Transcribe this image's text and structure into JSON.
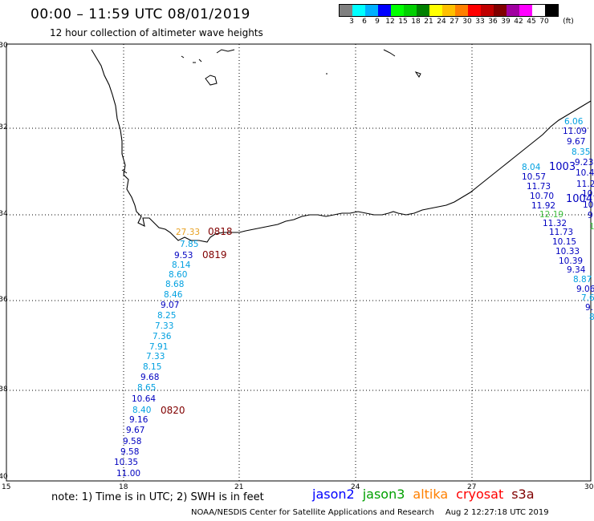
{
  "header": {
    "title": "00:00 – 11:59 UTC 08/01/2019",
    "subtitle": "12 hour collection of altimeter wave heights"
  },
  "colorbar": {
    "colors": [
      "#808080",
      "#00ffff",
      "#00b0ff",
      "#0000ff",
      "#00ff00",
      "#00d000",
      "#008000",
      "#ffff00",
      "#ffc000",
      "#ff8000",
      "#ff0000",
      "#c00000",
      "#800000",
      "#a000a0",
      "#ff00ff",
      "#ffffff",
      "#000000"
    ],
    "ticks": [
      "3",
      "6",
      "9",
      "12",
      "15",
      "18",
      "21",
      "24",
      "27",
      "30",
      "33",
      "36",
      "39",
      "42",
      "45",
      "70"
    ],
    "unit": "(ft)"
  },
  "axes": {
    "lat_labels": [
      "-30",
      "-32",
      "-34",
      "-36",
      "-38",
      "-40"
    ],
    "lon_labels": [
      "15",
      "18",
      "21",
      "24",
      "27",
      "30"
    ]
  },
  "west_track": [
    {
      "v": "27.33",
      "c": "#e8a020"
    },
    {
      "v": "7.85",
      "c": "#00a0e0"
    },
    {
      "v": "9.53",
      "c": "#0000c0"
    },
    {
      "v": "8.14",
      "c": "#00a0e0"
    },
    {
      "v": "8.60",
      "c": "#00a0e0"
    },
    {
      "v": "8.68",
      "c": "#00a0e0"
    },
    {
      "v": "8.46",
      "c": "#00a0e0"
    },
    {
      "v": "9.07",
      "c": "#0000c0"
    },
    {
      "v": "8.25",
      "c": "#00a0e0"
    },
    {
      "v": "7.33",
      "c": "#00a0e0"
    },
    {
      "v": "7.36",
      "c": "#00a0e0"
    },
    {
      "v": "7.91",
      "c": "#00a0e0"
    },
    {
      "v": "7.33",
      "c": "#00a0e0"
    },
    {
      "v": "8.15",
      "c": "#00a0e0"
    },
    {
      "v": "9.68",
      "c": "#0000c0"
    },
    {
      "v": "8.65",
      "c": "#00a0e0"
    },
    {
      "v": "10.64",
      "c": "#0000c0"
    },
    {
      "v": "8.40",
      "c": "#00a0e0"
    },
    {
      "v": "9.16",
      "c": "#0000c0"
    },
    {
      "v": "9.67",
      "c": "#0000c0"
    },
    {
      "v": "9.58",
      "c": "#0000c0"
    },
    {
      "v": "9.58",
      "c": "#0000c0"
    },
    {
      "v": "10.35",
      "c": "#0000c0"
    },
    {
      "v": "11.00",
      "c": "#0000c0"
    }
  ],
  "time_labels": [
    {
      "t": "0818",
      "c": "#800000"
    },
    {
      "t": "0819",
      "c": "#800000"
    },
    {
      "t": "0820",
      "c": "#800000"
    },
    {
      "t": "1003",
      "c": "#0000c0"
    },
    {
      "t": "1004",
      "c": "#0000c0"
    }
  ],
  "east_track_a": [
    {
      "v": "8.04",
      "c": "#00a0e0"
    },
    {
      "v": "10.57",
      "c": "#0000c0"
    },
    {
      "v": "11.73",
      "c": "#0000c0"
    },
    {
      "v": "10.70",
      "c": "#0000c0"
    },
    {
      "v": "11.92",
      "c": "#0000c0"
    },
    {
      "v": "12.19",
      "c": "#40c040"
    },
    {
      "v": "11.32",
      "c": "#0000c0"
    },
    {
      "v": "11.73",
      "c": "#0000c0"
    },
    {
      "v": "10.15",
      "c": "#0000c0"
    },
    {
      "v": "10.33",
      "c": "#0000c0"
    },
    {
      "v": "10.39",
      "c": "#0000c0"
    },
    {
      "v": "9.34",
      "c": "#0000c0"
    },
    {
      "v": "8.87",
      "c": "#00a0e0"
    },
    {
      "v": "9.06",
      "c": "#0000c0"
    },
    {
      "v": "7.6",
      "c": "#00a0e0"
    },
    {
      "v": "9.",
      "c": "#0000c0"
    },
    {
      "v": "8",
      "c": "#00a0e0"
    }
  ],
  "east_track_b": [
    {
      "v": "6.06",
      "c": "#00a0e0"
    },
    {
      "v": "11.09",
      "c": "#0000c0"
    },
    {
      "v": "9.67",
      "c": "#0000c0"
    },
    {
      "v": "8.35",
      "c": "#00a0e0"
    },
    {
      "v": "9.23",
      "c": "#0000c0"
    },
    {
      "v": "10.4",
      "c": "#0000c0"
    },
    {
      "v": "11.2",
      "c": "#0000c0"
    },
    {
      "v": "10.",
      "c": "#0000c0"
    },
    {
      "v": "10.",
      "c": "#0000c0"
    },
    {
      "v": "9",
      "c": "#0000c0"
    },
    {
      "v": "1",
      "c": "#40c040"
    }
  ],
  "footer": {
    "note": "note:  1) Time is in UTC; 2) SWH is in feet",
    "legend": [
      {
        "name": "jason2",
        "color": "#0000ff"
      },
      {
        "name": "jason3",
        "color": "#00a000"
      },
      {
        "name": "altika",
        "color": "#ff8000"
      },
      {
        "name": "cryosat",
        "color": "#ff0000"
      },
      {
        "name": "s3a",
        "color": "#800000"
      }
    ],
    "credit": "NOAA/NESDIS Center for Satellite Applications and Research",
    "timestamp": "Aug  2 12:27:18 UTC 2019"
  }
}
